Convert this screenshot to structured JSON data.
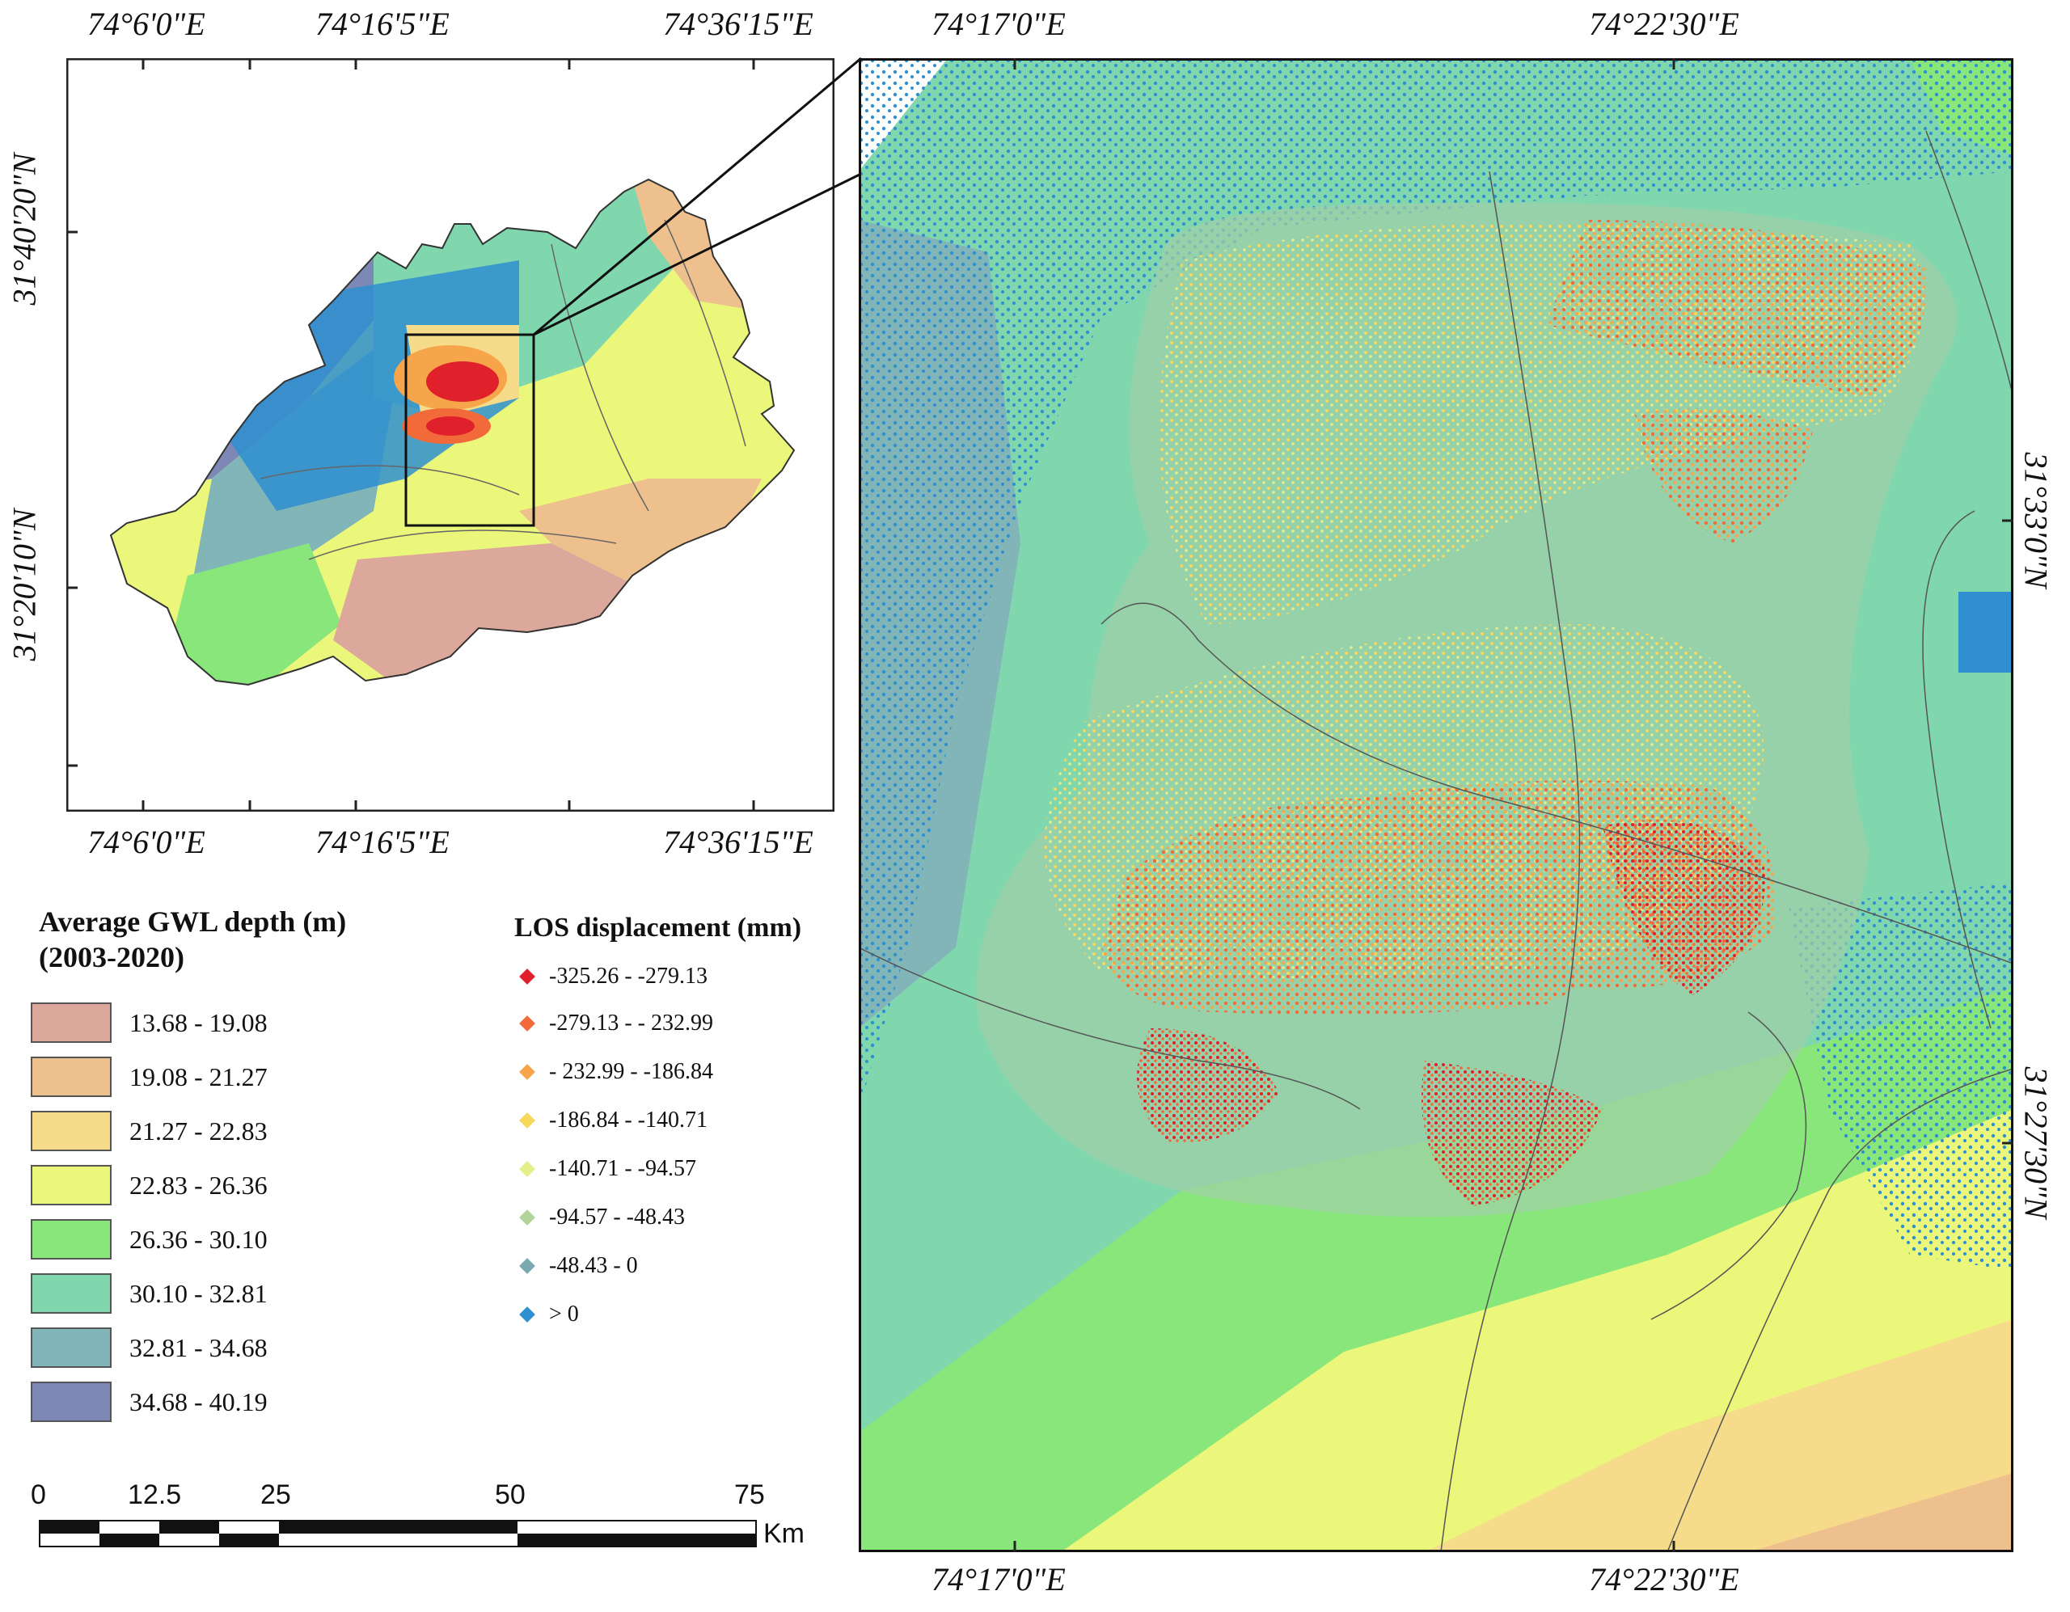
{
  "overview_map": {
    "top_lon_labels": [
      "74°6'0\"E",
      "74°16'5\"E",
      "74°36'15\"E"
    ],
    "bottom_lon_labels": [
      "74°6'0\"E",
      "74°16'5\"E",
      "74°36'15\"E"
    ],
    "left_lat_labels": [
      "31°40'20\"N",
      "31°20'10\"N"
    ]
  },
  "detail_map": {
    "top_lon_labels": [
      "74°17'0\"E",
      "74°22'30\"E"
    ],
    "bottom_lon_labels": [
      "74°17'0\"E",
      "74°22'30\"E"
    ],
    "right_lat_labels": [
      "31°33'0\"N",
      "31°27'30\"N"
    ]
  },
  "gwl_legend": {
    "title_line1": "Average GWL depth (m)",
    "title_line2": "(2003-2020)",
    "classes": [
      {
        "label": "13.68 - 19.08",
        "color": "#dca89c"
      },
      {
        "label": "19.08 - 21.27",
        "color": "#eec08e"
      },
      {
        "label": "21.27 - 22.83",
        "color": "#f6dc8a"
      },
      {
        "label": "22.83 - 26.36",
        "color": "#eaf77a"
      },
      {
        "label": "26.36 - 30.10",
        "color": "#88e67a"
      },
      {
        "label": "30.10 - 32.81",
        "color": "#80d7ae"
      },
      {
        "label": "32.81 - 34.68",
        "color": "#82b5b8"
      },
      {
        "label": "34.68 - 40.19",
        "color": "#7e88b6"
      }
    ]
  },
  "los_legend": {
    "title": "LOS displacement (mm)",
    "classes": [
      {
        "label": "-325.26 - -279.13",
        "color": "#e0202a"
      },
      {
        "label": "-279.13 - - 232.99",
        "color": "#f26a3a"
      },
      {
        "label": "- 232.99 - -186.84",
        "color": "#f7a54a"
      },
      {
        "label": "-186.84 - -140.71",
        "color": "#f7d85a"
      },
      {
        "label": "-140.71 - -94.57",
        "color": "#e4ef8a"
      },
      {
        "label": "-94.57 - -48.43",
        "color": "#b2d49a"
      },
      {
        "label": "-48.43 - 0",
        "color": "#7aaab0"
      },
      {
        "label": "> 0",
        "color": "#2f8fd0"
      }
    ]
  },
  "scale_bar": {
    "ticks": [
      "0",
      "12.5",
      "25",
      "50",
      "75"
    ],
    "unit": "Km"
  }
}
